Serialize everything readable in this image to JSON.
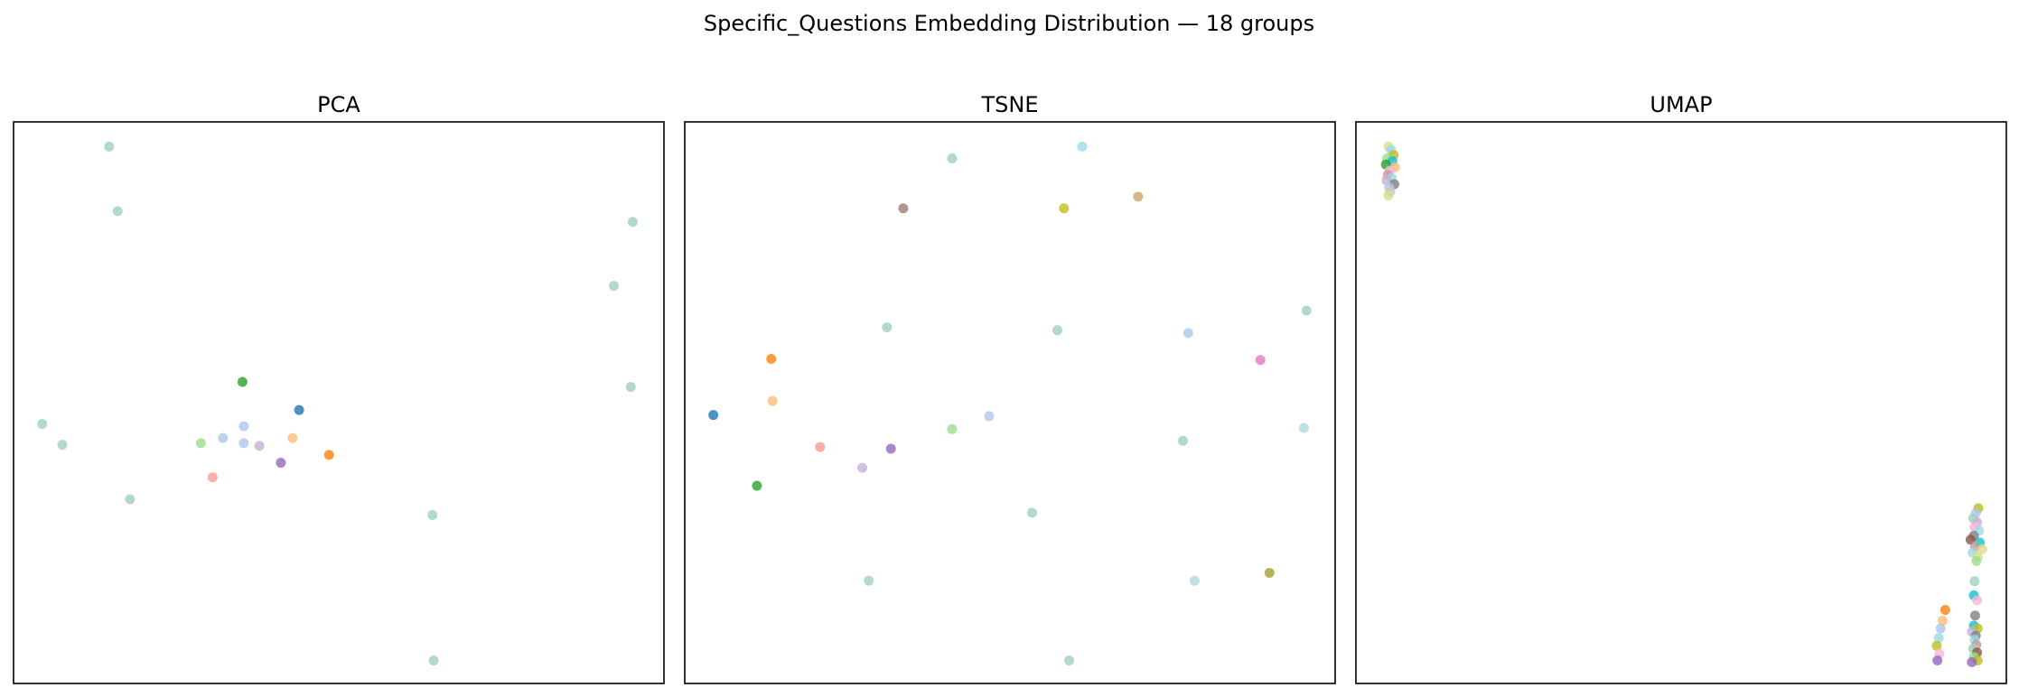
{
  "figure": {
    "title": "Specific_Questions Embedding Distribution — 18 groups"
  },
  "colors": {
    "tab20": [
      "#1f77b4",
      "#aec7e8",
      "#ff7f0e",
      "#ffbb78",
      "#2ca02c",
      "#98df8a",
      "#d62728",
      "#ff9896",
      "#9467bd",
      "#c5b0d5",
      "#8c564b",
      "#c49c94",
      "#e377c2",
      "#f7b6d2",
      "#7f7f7f",
      "#c7c7c7",
      "#bcbd22",
      "#dbdb8d",
      "#17becf",
      "#9edae5"
    ],
    "teal_gray": "#9fcfbf"
  },
  "chart_data": [
    {
      "type": "scatter",
      "title": "PCA",
      "xlabel": "",
      "ylabel": "",
      "xticks": false,
      "yticks": false,
      "grid": false,
      "xlim": [
        0,
        100
      ],
      "ylim": [
        0,
        100
      ],
      "points": [
        {
          "x": 14.7,
          "y": 95.6,
          "color": "#9fcfbf"
        },
        {
          "x": 16.0,
          "y": 84.1,
          "color": "#9fcfbf"
        },
        {
          "x": 95.2,
          "y": 82.2,
          "color": "#9fcfbf"
        },
        {
          "x": 92.3,
          "y": 70.8,
          "color": "#9fcfbf"
        },
        {
          "x": 94.9,
          "y": 52.8,
          "color": "#9fcfbf"
        },
        {
          "x": 4.4,
          "y": 46.2,
          "color": "#9fcfbf"
        },
        {
          "x": 7.5,
          "y": 42.5,
          "color": "#9fcfbf"
        },
        {
          "x": 17.9,
          "y": 32.8,
          "color": "#9fcfbf"
        },
        {
          "x": 64.4,
          "y": 30.0,
          "color": "#9fcfbf"
        },
        {
          "x": 64.6,
          "y": 4.1,
          "color": "#9fcfbf"
        },
        {
          "x": 35.2,
          "y": 53.7,
          "color": "#2ca02c"
        },
        {
          "x": 43.9,
          "y": 48.7,
          "color": "#1f77b4"
        },
        {
          "x": 35.4,
          "y": 45.8,
          "color": "#aec7e8"
        },
        {
          "x": 32.2,
          "y": 43.7,
          "color": "#aec7e8"
        },
        {
          "x": 35.4,
          "y": 42.8,
          "color": "#aec7e8"
        },
        {
          "x": 28.8,
          "y": 42.8,
          "color": "#98df8a"
        },
        {
          "x": 37.8,
          "y": 42.3,
          "color": "#c5b0d5"
        },
        {
          "x": 42.9,
          "y": 43.7,
          "color": "#ffbb78"
        },
        {
          "x": 48.5,
          "y": 40.7,
          "color": "#ff7f0e"
        },
        {
          "x": 41.1,
          "y": 39.3,
          "color": "#9467bd"
        },
        {
          "x": 30.6,
          "y": 36.7,
          "color": "#ff9896"
        }
      ]
    },
    {
      "type": "scatter",
      "title": "TSNE",
      "xlabel": "",
      "ylabel": "",
      "xticks": false,
      "yticks": false,
      "grid": false,
      "xlim": [
        0,
        100
      ],
      "ylim": [
        0,
        100
      ],
      "points": [
        {
          "x": 61.1,
          "y": 95.6,
          "color": "#9edae5"
        },
        {
          "x": 41.1,
          "y": 93.5,
          "color": "#9fcfbf"
        },
        {
          "x": 69.7,
          "y": 86.7,
          "color": "#c7a86a"
        },
        {
          "x": 33.6,
          "y": 84.6,
          "color": "#a07c74"
        },
        {
          "x": 58.3,
          "y": 84.6,
          "color": "#bcbd22"
        },
        {
          "x": 95.6,
          "y": 66.4,
          "color": "#9fcfbf"
        },
        {
          "x": 31.1,
          "y": 63.4,
          "color": "#9fcfbf"
        },
        {
          "x": 57.3,
          "y": 62.9,
          "color": "#9fcfbf"
        },
        {
          "x": 77.4,
          "y": 62.4,
          "color": "#aec7e8"
        },
        {
          "x": 88.5,
          "y": 57.6,
          "color": "#e377c2"
        },
        {
          "x": 13.3,
          "y": 57.8,
          "color": "#ff7f0e"
        },
        {
          "x": 13.5,
          "y": 50.3,
          "color": "#ffbb78"
        },
        {
          "x": 4.4,
          "y": 47.8,
          "color": "#1f77b4"
        },
        {
          "x": 46.8,
          "y": 47.6,
          "color": "#aec7e8"
        },
        {
          "x": 41.1,
          "y": 45.3,
          "color": "#98df8a"
        },
        {
          "x": 95.2,
          "y": 45.5,
          "color": "#b0d8da"
        },
        {
          "x": 76.6,
          "y": 43.2,
          "color": "#9fcfbf"
        },
        {
          "x": 20.8,
          "y": 42.1,
          "color": "#ff9896"
        },
        {
          "x": 31.7,
          "y": 41.8,
          "color": "#9467bd"
        },
        {
          "x": 27.3,
          "y": 38.4,
          "color": "#c5b0d5"
        },
        {
          "x": 11.1,
          "y": 35.2,
          "color": "#2ca02c"
        },
        {
          "x": 53.4,
          "y": 30.4,
          "color": "#9fcfbf"
        },
        {
          "x": 89.9,
          "y": 19.7,
          "color": "#a6a030"
        },
        {
          "x": 28.3,
          "y": 18.3,
          "color": "#9fcfbf"
        },
        {
          "x": 78.4,
          "y": 18.3,
          "color": "#b0d8da"
        },
        {
          "x": 59.1,
          "y": 4.1,
          "color": "#9fcfbf"
        }
      ]
    },
    {
      "type": "scatter",
      "title": "UMAP",
      "xlabel": "",
      "ylabel": "",
      "xticks": false,
      "yticks": false,
      "grid": false,
      "xlim": [
        0,
        100
      ],
      "ylim": [
        0,
        100
      ],
      "points": [
        {
          "x": 5.0,
          "y": 95.6,
          "color": "#dbdb8d"
        },
        {
          "x": 5.4,
          "y": 95.0,
          "color": "#9edae5"
        },
        {
          "x": 5.8,
          "y": 94.1,
          "color": "#bcbd22"
        },
        {
          "x": 4.8,
          "y": 93.5,
          "color": "#98df8a"
        },
        {
          "x": 5.6,
          "y": 93.0,
          "color": "#17becf"
        },
        {
          "x": 4.6,
          "y": 92.4,
          "color": "#2ca02c"
        },
        {
          "x": 6.0,
          "y": 91.9,
          "color": "#ffbb78"
        },
        {
          "x": 5.2,
          "y": 91.3,
          "color": "#f7b6d2"
        },
        {
          "x": 4.9,
          "y": 90.6,
          "color": "#c49c94"
        },
        {
          "x": 5.5,
          "y": 90.0,
          "color": "#9edae5"
        },
        {
          "x": 4.7,
          "y": 89.6,
          "color": "#c5b0d5"
        },
        {
          "x": 5.9,
          "y": 88.9,
          "color": "#7f7f7f"
        },
        {
          "x": 5.1,
          "y": 88.3,
          "color": "#aec7e8"
        },
        {
          "x": 5.3,
          "y": 87.6,
          "color": "#c7c7c7"
        },
        {
          "x": 5.0,
          "y": 86.9,
          "color": "#dbdb8d"
        },
        {
          "x": 95.7,
          "y": 31.2,
          "color": "#bcbd22"
        },
        {
          "x": 95.3,
          "y": 30.3,
          "color": "#aec7e8"
        },
        {
          "x": 94.9,
          "y": 29.4,
          "color": "#9fcfbf"
        },
        {
          "x": 95.5,
          "y": 28.7,
          "color": "#c5b0d5"
        },
        {
          "x": 95.1,
          "y": 27.9,
          "color": "#f7b6d2"
        },
        {
          "x": 95.8,
          "y": 27.2,
          "color": "#9edae5"
        },
        {
          "x": 95.0,
          "y": 26.3,
          "color": "#7f7f7f"
        },
        {
          "x": 94.5,
          "y": 25.6,
          "color": "#8c564b"
        },
        {
          "x": 95.9,
          "y": 25.1,
          "color": "#17becf"
        },
        {
          "x": 95.2,
          "y": 24.4,
          "color": "#c49c94"
        },
        {
          "x": 96.3,
          "y": 23.9,
          "color": "#dbdb8d"
        },
        {
          "x": 94.8,
          "y": 23.3,
          "color": "#9edae5"
        },
        {
          "x": 95.6,
          "y": 22.6,
          "color": "#dbdb8d"
        },
        {
          "x": 95.4,
          "y": 21.8,
          "color": "#98df8a"
        },
        {
          "x": 95.1,
          "y": 18.2,
          "color": "#9fcfbf"
        },
        {
          "x": 95.0,
          "y": 15.7,
          "color": "#17becf"
        },
        {
          "x": 95.5,
          "y": 14.8,
          "color": "#f7b6d2"
        },
        {
          "x": 95.2,
          "y": 12.1,
          "color": "#7f7f7f"
        },
        {
          "x": 95.0,
          "y": 10.3,
          "color": "#17becf"
        },
        {
          "x": 95.6,
          "y": 9.8,
          "color": "#bcbd22"
        },
        {
          "x": 94.7,
          "y": 9.2,
          "color": "#c5b0d5"
        },
        {
          "x": 95.3,
          "y": 8.5,
          "color": "#7f7f7f"
        },
        {
          "x": 95.1,
          "y": 7.8,
          "color": "#9edae5"
        },
        {
          "x": 95.4,
          "y": 6.9,
          "color": "#c49c94"
        },
        {
          "x": 94.9,
          "y": 6.2,
          "color": "#9fcfbf"
        },
        {
          "x": 95.5,
          "y": 5.5,
          "color": "#8c564b"
        },
        {
          "x": 95.0,
          "y": 4.7,
          "color": "#98df8a"
        },
        {
          "x": 95.6,
          "y": 4.1,
          "color": "#bcbd22"
        },
        {
          "x": 94.7,
          "y": 3.8,
          "color": "#9467bd"
        },
        {
          "x": 90.6,
          "y": 13.1,
          "color": "#ff7f0e"
        },
        {
          "x": 90.2,
          "y": 11.2,
          "color": "#ffbb78"
        },
        {
          "x": 89.9,
          "y": 9.8,
          "color": "#aec7e8"
        },
        {
          "x": 89.6,
          "y": 8.1,
          "color": "#9edae5"
        },
        {
          "x": 89.3,
          "y": 6.7,
          "color": "#bcbd22"
        },
        {
          "x": 89.7,
          "y": 5.3,
          "color": "#f7b6d2"
        },
        {
          "x": 89.4,
          "y": 4.1,
          "color": "#9467bd"
        }
      ]
    }
  ]
}
